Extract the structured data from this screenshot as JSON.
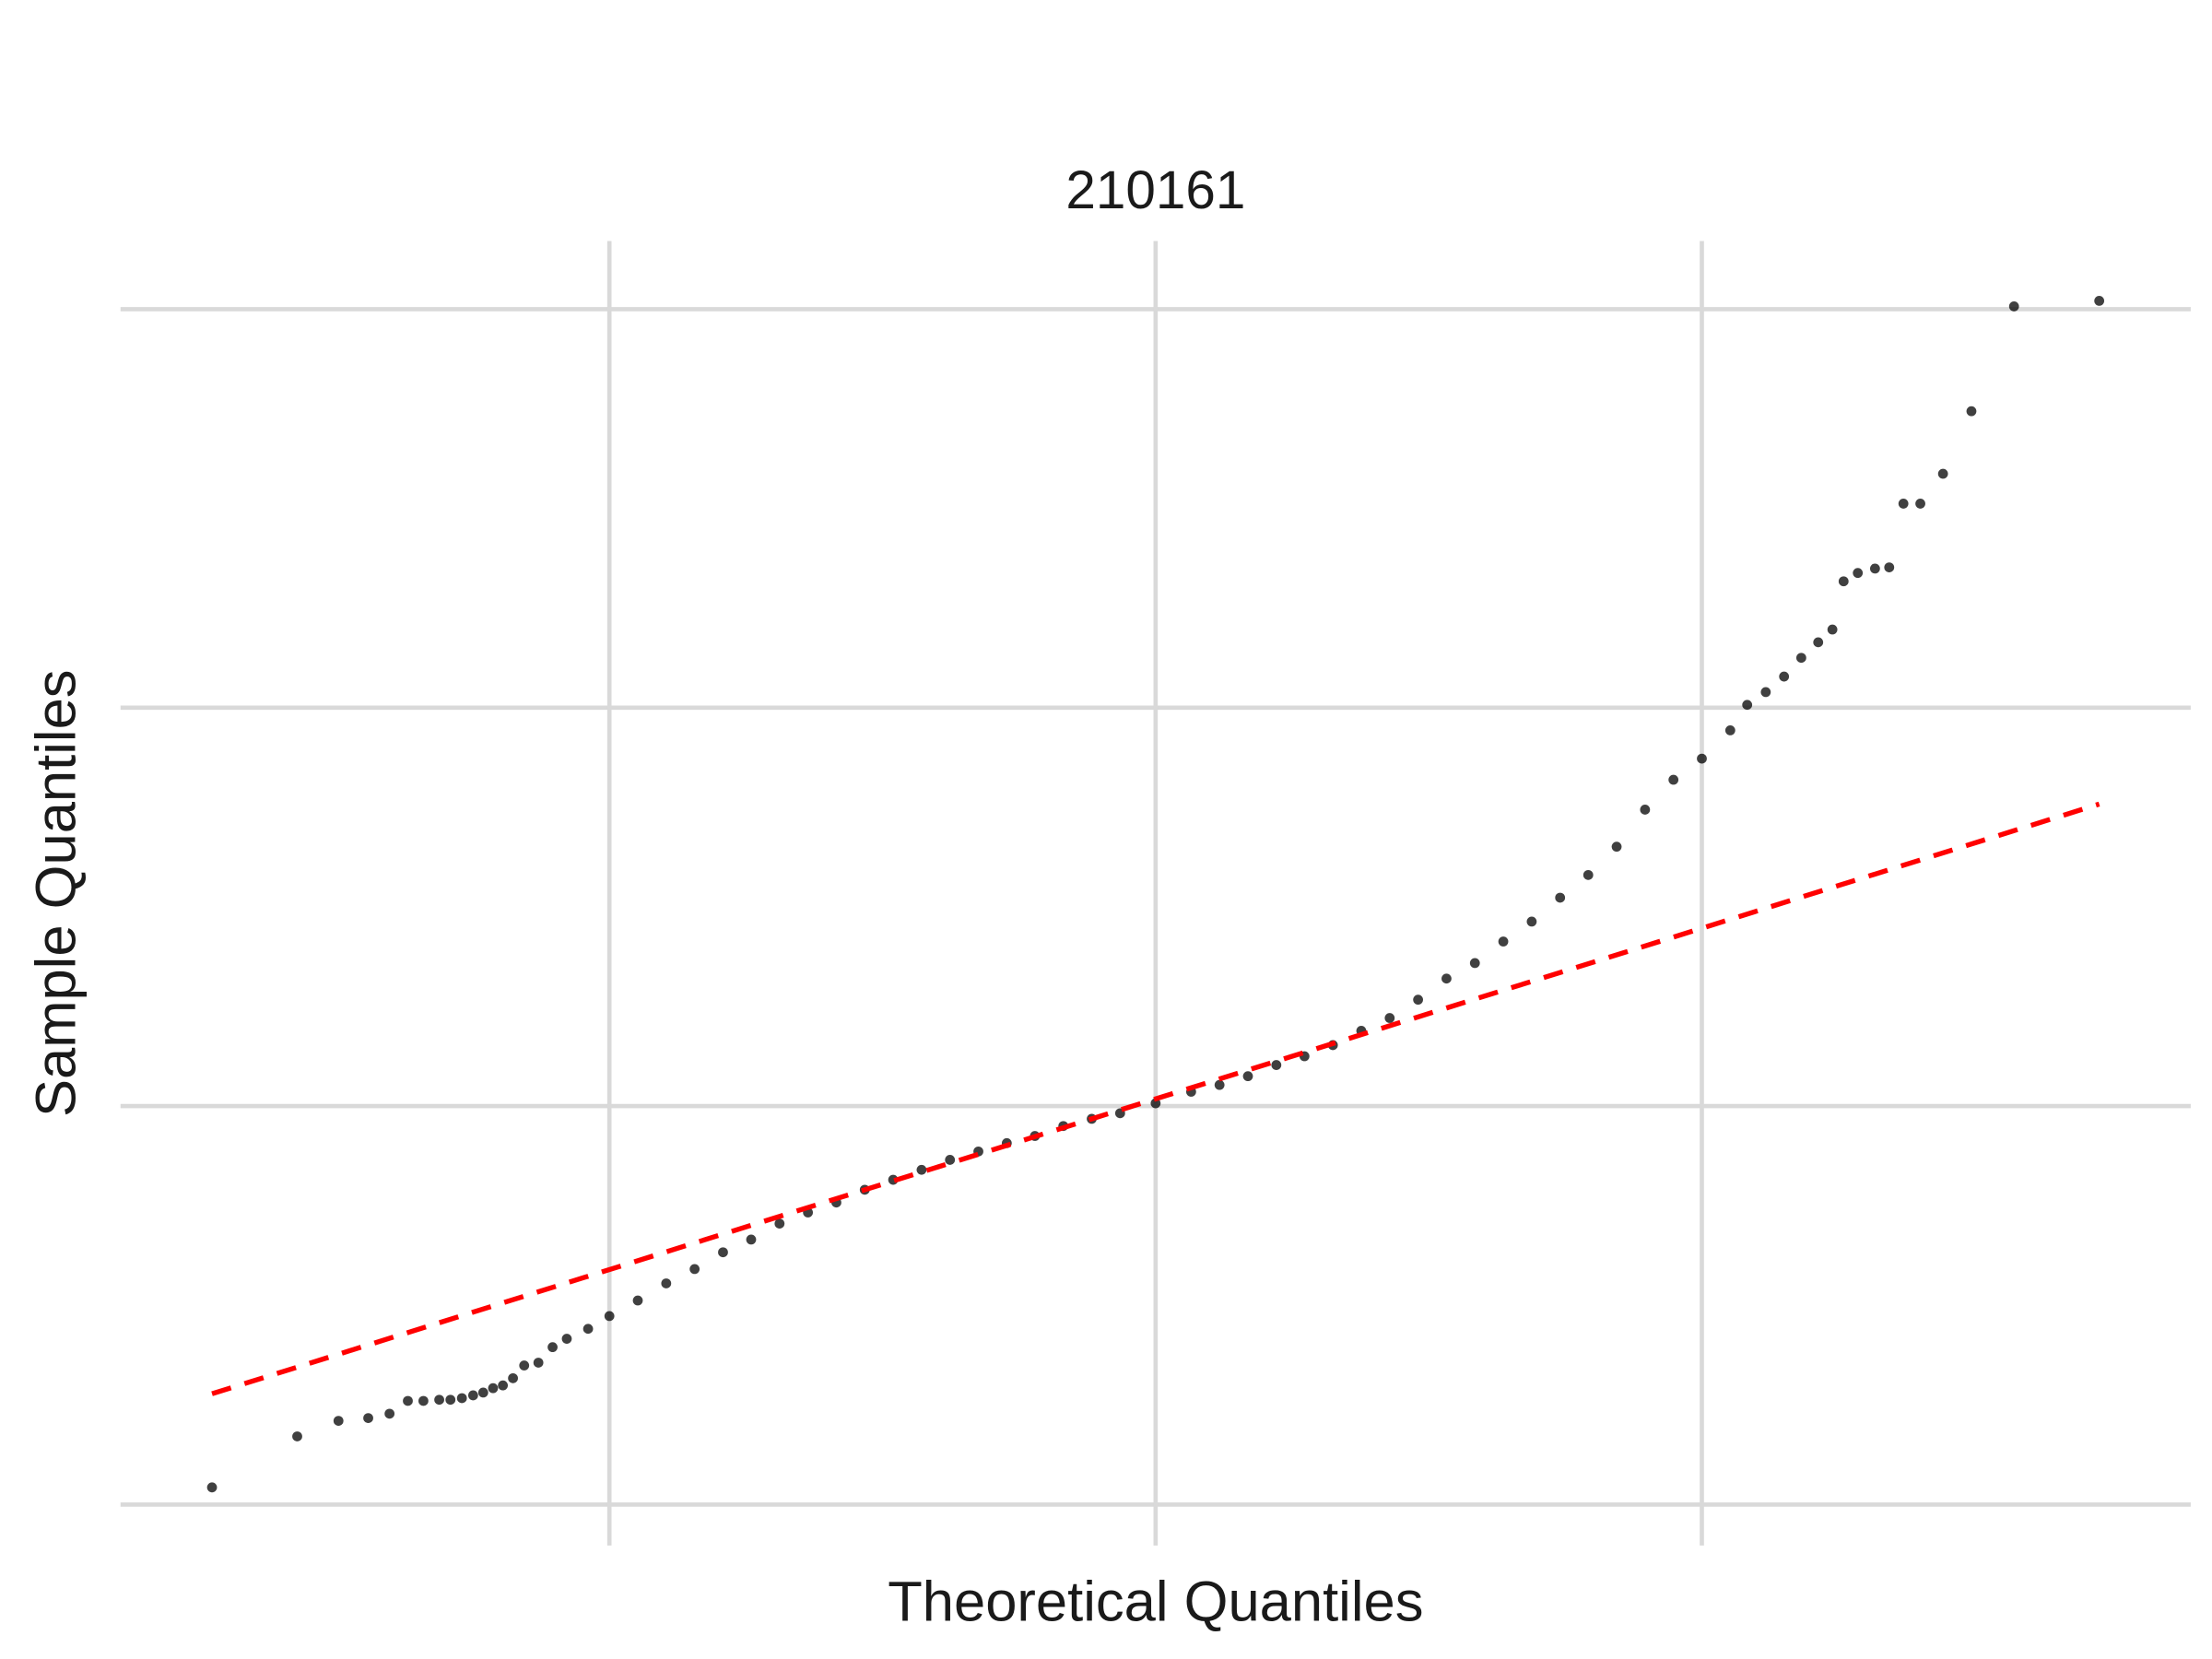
{
  "chart_data": {
    "type": "scatter",
    "title": "210161",
    "x_label": "Theoretical Quantiles",
    "y_label": "Sample Quantiles",
    "series": [
      {
        "name": null,
        "color": "#000000",
        "x": [
          -3.455,
          -3.143,
          -2.992,
          -2.883,
          -2.805,
          -2.738,
          -2.681,
          -2.623,
          -2.582,
          -2.54,
          -2.499,
          -2.462,
          -2.426,
          -2.39,
          -2.353,
          -2.312,
          -2.26,
          -2.208,
          -2.156,
          -2.078,
          -2.0,
          -1.896,
          -1.792,
          -1.688,
          -1.584,
          -1.481,
          -1.377,
          -1.273,
          -1.169,
          -1.065,
          -0.961,
          -0.857,
          -0.753,
          -0.649,
          -0.545,
          -0.442,
          -0.338,
          -0.234,
          -0.13,
          0.0,
          0.13,
          0.234,
          0.338,
          0.442,
          0.545,
          0.649,
          0.753,
          0.857,
          0.961,
          1.065,
          1.169,
          1.273,
          1.377,
          1.481,
          1.584,
          1.688,
          1.792,
          1.896,
          2.0,
          2.104,
          2.166,
          2.234,
          2.301,
          2.364,
          2.426,
          2.478,
          2.519,
          2.571,
          2.634,
          2.686,
          2.738,
          2.8,
          2.883,
          2.987,
          3.143,
          3.455
        ],
        "values": [
          -0.957,
          -0.829,
          -0.79,
          -0.783,
          -0.772,
          -0.74,
          -0.74,
          -0.737,
          -0.737,
          -0.733,
          -0.726,
          -0.719,
          -0.708,
          -0.701,
          -0.683,
          -0.651,
          -0.644,
          -0.605,
          -0.584,
          -0.559,
          -0.527,
          -0.488,
          -0.445,
          -0.409,
          -0.367,
          -0.335,
          -0.295,
          -0.267,
          -0.242,
          -0.21,
          -0.185,
          -0.16,
          -0.135,
          -0.114,
          -0.093,
          -0.075,
          -0.05,
          -0.032,
          -0.018,
          0.007,
          0.036,
          0.053,
          0.075,
          0.103,
          0.125,
          0.153,
          0.189,
          0.221,
          0.267,
          0.32,
          0.359,
          0.413,
          0.463,
          0.523,
          0.58,
          0.651,
          0.744,
          0.819,
          0.872,
          0.943,
          1.007,
          1.039,
          1.078,
          1.125,
          1.164,
          1.196,
          1.317,
          1.338,
          1.349,
          1.352,
          1.512,
          1.512,
          1.587,
          1.744,
          2.007,
          2.021
        ]
      }
    ],
    "reference_line": {
      "x": [
        -3.455,
        3.455
      ],
      "values": [
        -0.722,
        0.758
      ],
      "color": "#ff0000"
    },
    "xlim": [
      -3.79,
      3.79
    ],
    "ylim": [
      -1.103,
      2.171
    ],
    "xticks": [
      -2,
      0,
      2
    ],
    "yticks": [
      -1,
      0,
      1,
      2
    ],
    "grid": true
  }
}
